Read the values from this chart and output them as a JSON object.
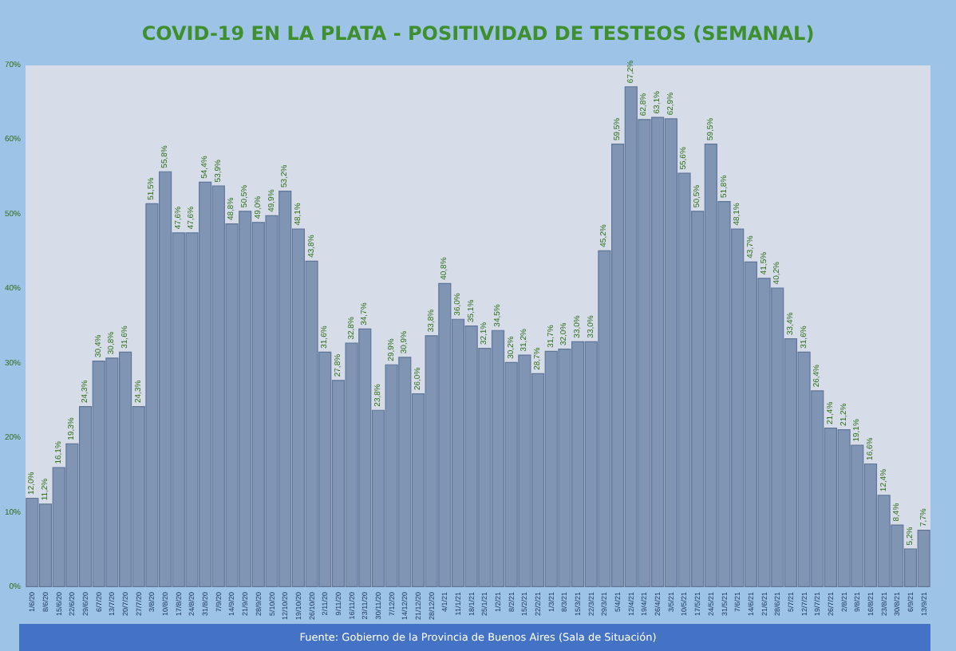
{
  "chart_data": {
    "type": "bar",
    "title": "COVID-19 EN LA PLATA - POSITIVIDAD DE TESTEOS (SEMANAL)",
    "annotations": [
      "Fuente: Gobierno de la Provincia de Buenos Aires (Sala de Situación)"
    ],
    "categories": [
      "1/6/20",
      "8/6/20",
      "15/6/20",
      "22/6/20",
      "29/6/20",
      "6/7/20",
      "13/7/20",
      "20/7/20",
      "27/7/20",
      "3/8/20",
      "10/8/20",
      "17/8/20",
      "24/8/20",
      "31/8/20",
      "7/9/20",
      "14/9/20",
      "21/9/20",
      "28/9/20",
      "5/10/20",
      "12/10/20",
      "19/10/20",
      "26/10/20",
      "2/11/20",
      "9/11/20",
      "16/11/20",
      "23/11/20",
      "30/11/20",
      "7/12/20",
      "14/12/20",
      "21/12/20",
      "28/12/20",
      "4/1/21",
      "11/1/21",
      "18/1/21",
      "25/1/21",
      "1/2/21",
      "8/2/21",
      "15/2/21",
      "22/2/21",
      "1/3/21",
      "8/3/21",
      "15/3/21",
      "22/3/21",
      "29/3/21",
      "5/4/21",
      "12/4/21",
      "19/4/21",
      "26/4/21",
      "3/5/21",
      "10/5/21",
      "17/5/21",
      "24/5/21",
      "31/5/21",
      "7/6/21",
      "14/6/21",
      "21/6/21",
      "28/6/21",
      "5/7/21",
      "12/7/21",
      "19/7/21",
      "26/7/21",
      "2/8/21",
      "9/8/21",
      "16/8/21",
      "23/8/21",
      "30/8/21",
      "6/9/21",
      "13/9/21"
    ],
    "values": [
      12.0,
      11.2,
      16.1,
      19.3,
      24.3,
      30.4,
      30.8,
      31.6,
      24.3,
      51.5,
      55.8,
      47.6,
      47.6,
      54.4,
      53.9,
      48.8,
      50.5,
      49.0,
      49.9,
      53.2,
      48.1,
      43.8,
      31.6,
      27.8,
      32.8,
      34.7,
      23.8,
      29.9,
      30.9,
      26.0,
      33.8,
      40.8,
      36.0,
      35.1,
      32.1,
      34.5,
      30.2,
      31.2,
      28.7,
      31.7,
      32.0,
      33.0,
      33.0,
      45.2,
      59.5,
      67.2,
      62.8,
      63.1,
      62.9,
      55.6,
      50.5,
      59.5,
      51.8,
      48.1,
      43.7,
      41.5,
      40.2,
      33.4,
      31.6,
      26.4,
      21.4,
      21.2,
      19.1,
      16.6,
      12.4,
      8.4,
      5.2,
      7.7
    ],
    "value_labels": [
      "12,0%",
      "11,2%",
      "16,1%",
      "19,3%",
      "24,3%",
      "30,4%",
      "30,8%",
      "31,6%",
      "24,3%",
      "51,5%",
      "55,8%",
      "47,6%",
      "47,6%",
      "54,4%",
      "53,9%",
      "48,8%",
      "50,5%",
      "49,0%",
      "49,9%",
      "53,2%",
      "48,1%",
      "43,8%",
      "31,6%",
      "27,8%",
      "32,8%",
      "34,7%",
      "23,8%",
      "29,9%",
      "30,9%",
      "26,0%",
      "33,8%",
      "40,8%",
      "36,0%",
      "35,1%",
      "32,1%",
      "34,5%",
      "30,2%",
      "31,2%",
      "28,7%",
      "31,7%",
      "32,0%",
      "33,0%",
      "33,0%",
      "45,2%",
      "59,5%",
      "67,2%",
      "62,8%",
      "63,1%",
      "62,9%",
      "55,6%",
      "50,5%",
      "59,5%",
      "51,8%",
      "48,1%",
      "43,7%",
      "41,5%",
      "40,2%",
      "33,4%",
      "31,6%",
      "26,4%",
      "21,4%",
      "21,2%",
      "19,1%",
      "16,6%",
      "12,4%",
      "8,4%",
      "5,2%",
      "7,7%"
    ],
    "color": "#8095b3",
    "ylim": [
      0,
      70
    ],
    "yticks": [
      {
        "value": 0,
        "label": "0%"
      },
      {
        "value": 10,
        "label": "10%"
      },
      {
        "value": 20,
        "label": "20%"
      },
      {
        "value": 30,
        "label": "30%"
      },
      {
        "value": 40,
        "label": "40%"
      },
      {
        "value": 50,
        "label": "50%"
      },
      {
        "value": 60,
        "label": "60%"
      },
      {
        "value": 70,
        "label": "70%"
      }
    ],
    "grid": false
  }
}
